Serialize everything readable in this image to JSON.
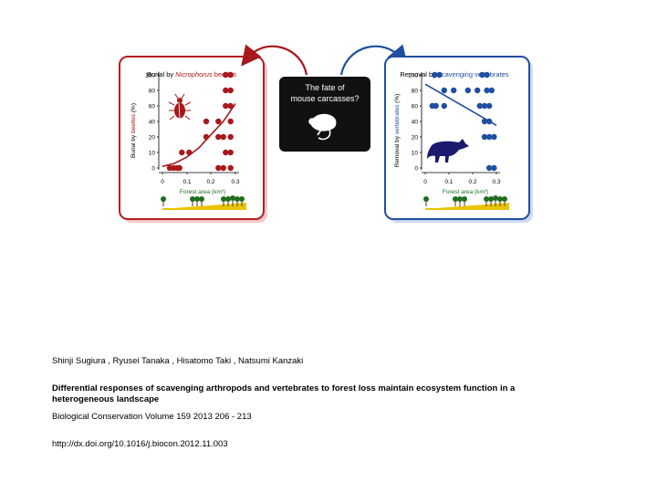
{
  "figure": {
    "center_box": {
      "line1": "The fate of",
      "line2": "mouse carcasses?"
    },
    "colors": {
      "beetle_red": "#a8181c",
      "vertebrate_blue": "#1f4fa0",
      "forest_green": "#1e6e1e",
      "ground_yellow": "#e8c400",
      "center_bg": "#111111"
    },
    "icons": [
      "mouse-carcass-icon",
      "beetle-icon",
      "raccoon-dog-icon",
      "tree-icon"
    ],
    "left_panel": {
      "title_prefix": "Burial by ",
      "title_highlight": "Nicrophorus",
      "title_suffix": " beetles",
      "ylabel_prefix": "Burial by ",
      "ylabel_highlight": "beetles",
      "ylabel_suffix": " (%)",
      "xlabel": "Forest area (km²)"
    },
    "right_panel": {
      "title_prefix": "Removal by ",
      "title_highlight": "scavenging vertebrates",
      "ylabel_prefix": "Removal by ",
      "ylabel_highlight": "vertebrates",
      "ylabel_suffix": " (%)",
      "xlabel": "Forest area (km²)"
    }
  },
  "chart_data": [
    {
      "type": "scatter",
      "title": "Burial by Nicrophorus beetles",
      "xlabel": "Forest area (km²)",
      "ylabel": "Burial by beetles (%)",
      "xlim": [
        0,
        0.32
      ],
      "ylim": [
        0,
        100
      ],
      "xticks": [
        "0",
        "0.1",
        "0.2",
        "0.3"
      ],
      "yticks": [
        "0",
        "10",
        "20",
        "40",
        "60",
        "80",
        "100"
      ],
      "color": "#a8181c",
      "points": [
        {
          "x": 0.03,
          "y": 0
        },
        {
          "x": 0.045,
          "y": 0
        },
        {
          "x": 0.06,
          "y": 0
        },
        {
          "x": 0.07,
          "y": 0
        },
        {
          "x": 0.08,
          "y": 10
        },
        {
          "x": 0.11,
          "y": 10
        },
        {
          "x": 0.18,
          "y": 20
        },
        {
          "x": 0.18,
          "y": 40
        },
        {
          "x": 0.23,
          "y": 0
        },
        {
          "x": 0.25,
          "y": 0
        },
        {
          "x": 0.23,
          "y": 20
        },
        {
          "x": 0.25,
          "y": 20
        },
        {
          "x": 0.23,
          "y": 40
        },
        {
          "x": 0.26,
          "y": 10
        },
        {
          "x": 0.26,
          "y": 60
        },
        {
          "x": 0.26,
          "y": 80
        },
        {
          "x": 0.26,
          "y": 100
        },
        {
          "x": 0.28,
          "y": 0
        },
        {
          "x": 0.28,
          "y": 10
        },
        {
          "x": 0.28,
          "y": 20
        },
        {
          "x": 0.28,
          "y": 40
        },
        {
          "x": 0.28,
          "y": 60
        },
        {
          "x": 0.28,
          "y": 80
        },
        {
          "x": 0.28,
          "y": 100
        }
      ],
      "fit": [
        [
          0,
          1
        ],
        [
          0.05,
          3
        ],
        [
          0.1,
          7
        ],
        [
          0.15,
          13
        ],
        [
          0.2,
          23
        ],
        [
          0.25,
          40
        ],
        [
          0.3,
          63
        ]
      ]
    },
    {
      "type": "scatter",
      "title": "Removal by scavenging vertebrates",
      "xlabel": "Forest area (km²)",
      "ylabel": "Removal by vertebrates (%)",
      "xlim": [
        0,
        0.32
      ],
      "ylim": [
        0,
        100
      ],
      "xticks": [
        "0",
        "0.1",
        "0.2",
        "0.3"
      ],
      "yticks": [
        "0",
        "10",
        "20",
        "40",
        "60",
        "80",
        "100"
      ],
      "color": "#1f4fa0",
      "points": [
        {
          "x": 0.04,
          "y": 100
        },
        {
          "x": 0.06,
          "y": 100
        },
        {
          "x": 0.03,
          "y": 60
        },
        {
          "x": 0.045,
          "y": 60
        },
        {
          "x": 0.08,
          "y": 80
        },
        {
          "x": 0.12,
          "y": 80
        },
        {
          "x": 0.08,
          "y": 60
        },
        {
          "x": 0.18,
          "y": 80
        },
        {
          "x": 0.24,
          "y": 100
        },
        {
          "x": 0.26,
          "y": 100
        },
        {
          "x": 0.22,
          "y": 80
        },
        {
          "x": 0.23,
          "y": 60
        },
        {
          "x": 0.25,
          "y": 40
        },
        {
          "x": 0.27,
          "y": 40
        },
        {
          "x": 0.25,
          "y": 60
        },
        {
          "x": 0.27,
          "y": 60
        },
        {
          "x": 0.25,
          "y": 20
        },
        {
          "x": 0.27,
          "y": 20
        },
        {
          "x": 0.29,
          "y": 20
        },
        {
          "x": 0.26,
          "y": 80
        },
        {
          "x": 0.28,
          "y": 80
        },
        {
          "x": 0.27,
          "y": 0
        },
        {
          "x": 0.29,
          "y": 0
        }
      ],
      "fit": [
        [
          0,
          88
        ],
        [
          0.3,
          35
        ]
      ]
    }
  ],
  "citation": {
    "authors": "Shinji  Sugiura , Ryusei  Tanaka , Hisatomo  Taki , Natsumi  Kanzaki",
    "title": "Differential responses of scavenging arthropods and vertebrates to forest loss maintain ecosystem function in a heterogeneous landscape",
    "journal": "Biological Conservation Volume 159 2013 206 - 213",
    "doi": "http://dx.doi.org/10.1016/j.biocon.2012.11.003"
  }
}
